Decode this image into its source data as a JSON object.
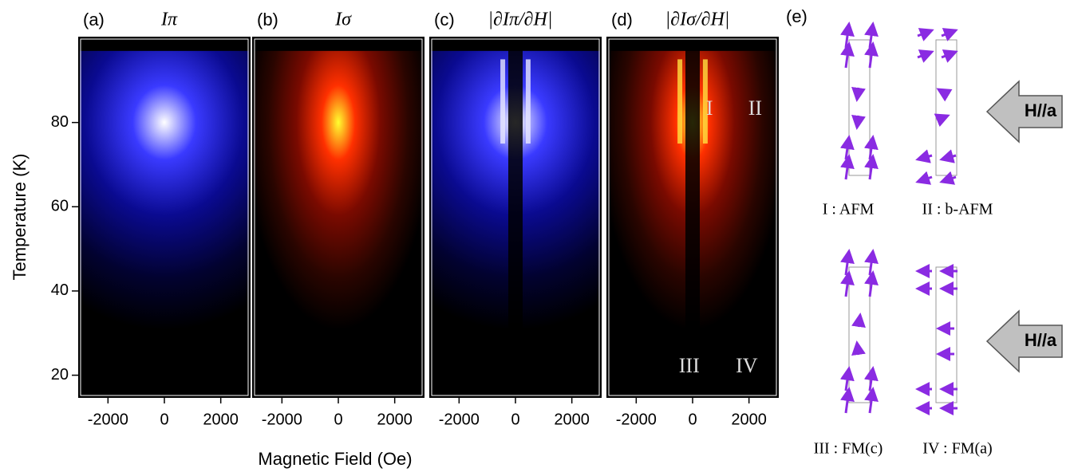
{
  "chart_data": [
    {
      "type": "heatmap",
      "panel": "(a)",
      "title": "Iπ",
      "colormap": "blue",
      "derivative": false,
      "xlim": [
        -3000,
        3000
      ],
      "xticks": [
        -2000,
        0,
        2000
      ],
      "ylim": [
        15,
        100
      ],
      "yticks": [
        20,
        40,
        60,
        80
      ]
    },
    {
      "type": "heatmap",
      "panel": "(b)",
      "title": "Iσ",
      "colormap": "hot",
      "derivative": false,
      "xlim": [
        -3000,
        3000
      ],
      "xticks": [
        -2000,
        0,
        2000
      ],
      "ylim": [
        15,
        100
      ]
    },
    {
      "type": "heatmap",
      "panel": "(c)",
      "title": "|∂Iπ/∂H|",
      "colormap": "blue",
      "derivative": true,
      "xlim": [
        -3000,
        3000
      ],
      "xticks": [
        -2000,
        0,
        2000
      ],
      "ylim": [
        15,
        100
      ]
    },
    {
      "type": "heatmap",
      "panel": "(d)",
      "title": "|∂Iσ/∂H|",
      "colormap": "hot",
      "derivative": true,
      "xlim": [
        -3000,
        3000
      ],
      "xticks": [
        -2000,
        0,
        2000
      ],
      "ylim": [
        15,
        100
      ],
      "annotations": [
        "I",
        "II",
        "III",
        "IV"
      ]
    }
  ],
  "xlabel": "Magnetic Field (Oe)",
  "ylabel": "Temperature (K)",
  "panel_e": {
    "label": "(e)",
    "field": [
      "H//a",
      "H//a"
    ],
    "states": [
      "I : AFM",
      "II : b-AFM",
      "III : FM(c)",
      "IV : FM(a)"
    ]
  }
}
